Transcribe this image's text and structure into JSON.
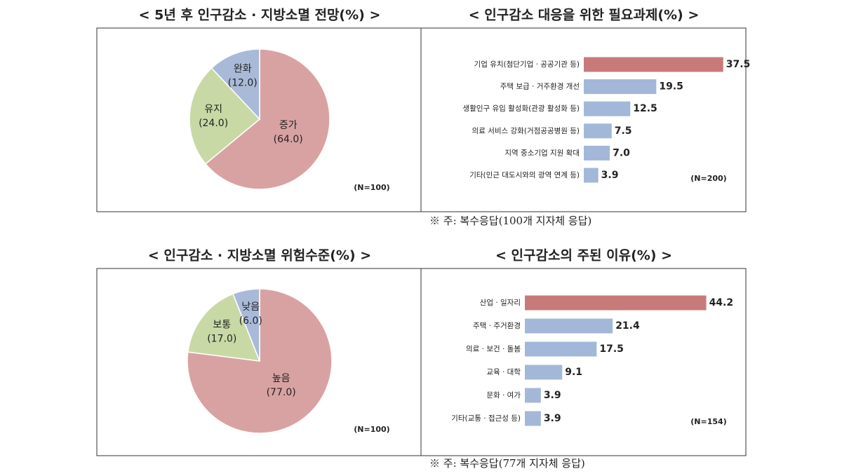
{
  "chart_data": [
    {
      "type": "pie",
      "title": "< 5년 후 인구감소 · 지방소멸 전망(%) >",
      "categories": [
        "증가",
        "유지",
        "완화"
      ],
      "values": [
        64.0,
        24.0,
        12.0
      ],
      "value_labels": [
        "(64.0)",
        "(24.0)",
        "(12.0)"
      ],
      "colors": [
        "#d9a2a2",
        "#c8d9a5",
        "#a9bad8"
      ],
      "annotation": "(N=100)"
    },
    {
      "type": "bar",
      "title": "< 인구감소 대응을 위한 필요과제(%) >",
      "categories": [
        "기업 유치(첨단기업 · 공공기관 등)",
        "주택 보급 · 거주환경 개선",
        "생활인구 유입 활성화(관광 활성화 등)",
        "의료 서비스 강화(거점공공병원 등)",
        "지역 중소기업 지원 확대",
        "기타(인근 대도시와의 광역 연계 등)"
      ],
      "values": [
        37.5,
        19.5,
        12.5,
        7.5,
        7.0,
        3.9
      ],
      "value_labels": [
        "37.5",
        "19.5",
        "12.5",
        "7.5",
        "7.0",
        "3.9"
      ],
      "colors": [
        "#c87a7a",
        "#a3b8d8",
        "#a3b8d8",
        "#a3b8d8",
        "#a3b8d8",
        "#a3b8d8"
      ],
      "annotation": "(N=200)",
      "note": "※ 주: 복수응답(100개 지자체 응답)"
    },
    {
      "type": "pie",
      "title": "< 인구감소 · 지방소멸 위험수준(%) >",
      "categories": [
        "높음",
        "보통",
        "낮음"
      ],
      "values": [
        77.0,
        17.0,
        6.0
      ],
      "value_labels": [
        "(77.0)",
        "(17.0)",
        "(6.0)"
      ],
      "colors": [
        "#d9a2a2",
        "#c8d9a5",
        "#a9bad8"
      ],
      "annotation": "(N=100)"
    },
    {
      "type": "bar",
      "title": "< 인구감소의 주된 이유(%) >",
      "categories": [
        "산업 · 일자리",
        "주택 · 주거환경",
        "의료 · 보건 · 돌봄",
        "교육 · 대학",
        "문화 · 여가",
        "기타(교통 · 접근성 등)"
      ],
      "values": [
        44.2,
        21.4,
        17.5,
        9.1,
        3.9,
        3.9
      ],
      "value_labels": [
        "44.2",
        "21.4",
        "17.5",
        "9.1",
        "3.9",
        "3.9"
      ],
      "colors": [
        "#c87a7a",
        "#a3b8d8",
        "#a3b8d8",
        "#a3b8d8",
        "#a3b8d8",
        "#a3b8d8"
      ],
      "annotation": "(N=154)",
      "note": "※ 주: 복수응답(77개 지자체 응답)"
    }
  ]
}
